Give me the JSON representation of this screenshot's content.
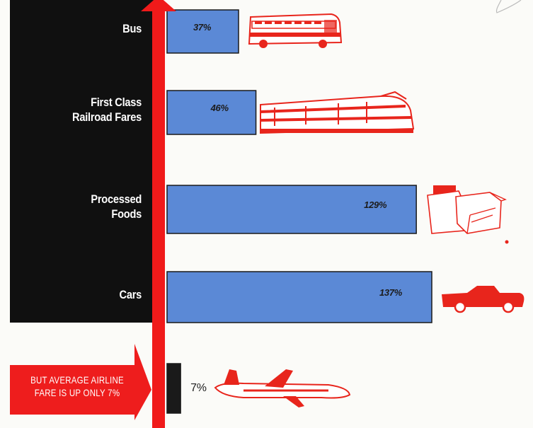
{
  "chart_data": {
    "type": "bar",
    "orientation": "horizontal",
    "categories": [
      "Bus",
      "First Class Railroad Fares",
      "Processed Foods",
      "Cars",
      "Average Airline Fare"
    ],
    "category_display": [
      [
        "Bus"
      ],
      [
        "First Class",
        "Railroad Fares"
      ],
      [
        "Processed",
        "Foods"
      ],
      [
        "Cars"
      ],
      []
    ],
    "values": [
      37,
      46,
      129,
      137,
      7
    ],
    "value_labels": [
      "37%",
      "46%",
      "129%",
      "137%",
      "7%"
    ],
    "title": "",
    "xlabel": "",
    "ylabel": "",
    "xlim": [
      0,
      145
    ],
    "grid": false,
    "legend": "none",
    "annotation": [
      "BUT AVERAGE AIRLINE",
      "FARE IS UP ONLY 7%"
    ]
  },
  "icons": [
    "bus-icon",
    "train-icon",
    "boxes-icon",
    "car-icon",
    "airplane-icon"
  ],
  "colors": {
    "bar": "#5b89d6",
    "bar_edge": "#1a1a1a",
    "axis_arrow": "#f01a1a",
    "label_panel": "#101010",
    "note_arrow": "#ee1d1d",
    "illustration_red": "#e8251c"
  }
}
